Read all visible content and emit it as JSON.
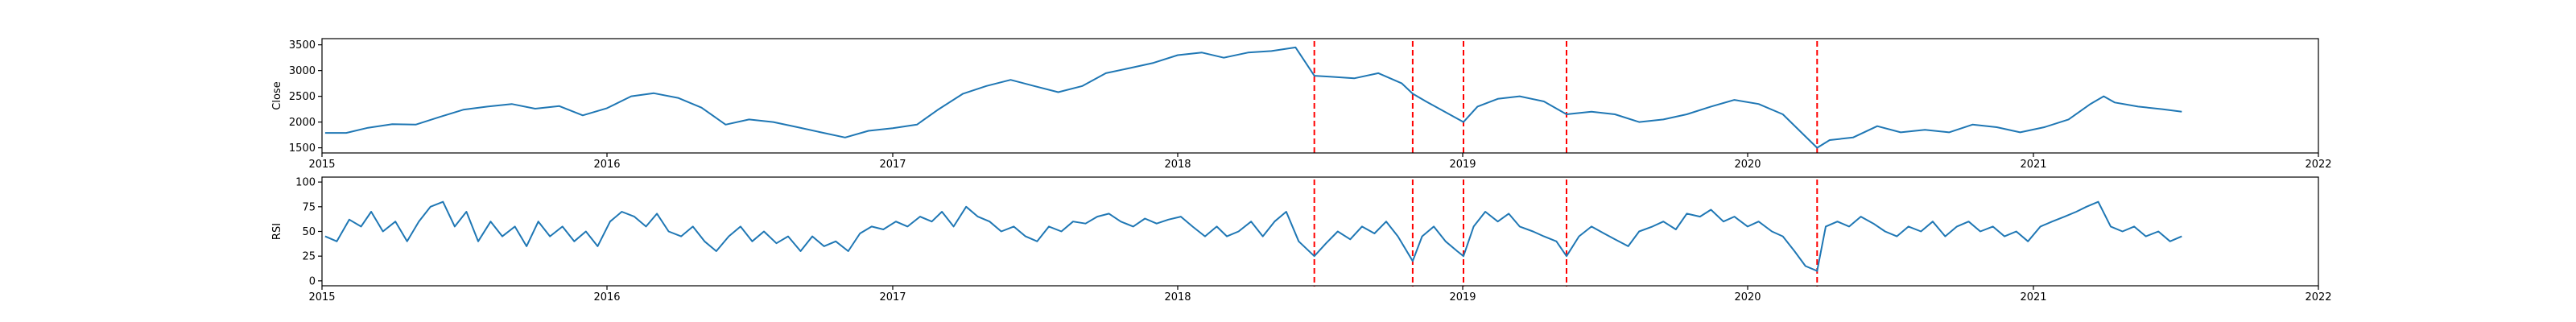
{
  "colors": {
    "line": "#1f77b4",
    "signal": "#ff0000",
    "axis": "#000000",
    "background": "#ffffff"
  },
  "chart_data": [
    {
      "type": "line",
      "ylabel": "Close",
      "xlabel": "",
      "xlim": [
        "2015-01-01",
        "2022-01-01"
      ],
      "ylim": [
        1400,
        3620
      ],
      "x_ticks": [
        "2015",
        "2016",
        "2017",
        "2018",
        "2019",
        "2020",
        "2021",
        "2022"
      ],
      "y_ticks": [
        1500,
        2000,
        2500,
        3000,
        3500
      ],
      "grid": false,
      "signal_lines": [
        "2018-06-25",
        "2018-10-29",
        "2019-01-02",
        "2019-05-14",
        "2020-03-30"
      ],
      "series": [
        {
          "name": "",
          "points": [
            [
              "2015-01-05",
              1790
            ],
            [
              "2015-02-01",
              1790
            ],
            [
              "2015-03-01",
              1890
            ],
            [
              "2015-04-01",
              1960
            ],
            [
              "2015-05-01",
              1950
            ],
            [
              "2015-06-01",
              2100
            ],
            [
              "2015-07-01",
              2240
            ],
            [
              "2015-08-01",
              2300
            ],
            [
              "2015-09-01",
              2350
            ],
            [
              "2015-10-01",
              2260
            ],
            [
              "2015-11-01",
              2310
            ],
            [
              "2015-12-01",
              2130
            ],
            [
              "2016-01-01",
              2270
            ],
            [
              "2016-02-01",
              2500
            ],
            [
              "2016-03-01",
              2560
            ],
            [
              "2016-04-01",
              2470
            ],
            [
              "2016-05-01",
              2280
            ],
            [
              "2016-06-01",
              1950
            ],
            [
              "2016-07-01",
              2050
            ],
            [
              "2016-08-01",
              2000
            ],
            [
              "2016-09-01",
              1900
            ],
            [
              "2016-10-01",
              1800
            ],
            [
              "2016-11-01",
              1700
            ],
            [
              "2016-12-01",
              1830
            ],
            [
              "2017-01-01",
              1880
            ],
            [
              "2017-02-01",
              1950
            ],
            [
              "2017-03-01",
              2250
            ],
            [
              "2017-04-01",
              2550
            ],
            [
              "2017-05-01",
              2700
            ],
            [
              "2017-06-01",
              2820
            ],
            [
              "2017-07-01",
              2700
            ],
            [
              "2017-08-01",
              2580
            ],
            [
              "2017-09-01",
              2700
            ],
            [
              "2017-10-01",
              2950
            ],
            [
              "2017-11-01",
              3050
            ],
            [
              "2017-12-01",
              3150
            ],
            [
              "2018-01-01",
              3300
            ],
            [
              "2018-02-01",
              3350
            ],
            [
              "2018-03-01",
              3250
            ],
            [
              "2018-04-01",
              3350
            ],
            [
              "2018-05-01",
              3380
            ],
            [
              "2018-06-01",
              3450
            ],
            [
              "2018-06-25",
              2900
            ],
            [
              "2018-07-15",
              2880
            ],
            [
              "2018-08-15",
              2850
            ],
            [
              "2018-09-15",
              2950
            ],
            [
              "2018-10-15",
              2750
            ],
            [
              "2018-10-29",
              2550
            ],
            [
              "2018-11-15",
              2400
            ],
            [
              "2018-12-15",
              2150
            ],
            [
              "2019-01-02",
              2000
            ],
            [
              "2019-01-20",
              2300
            ],
            [
              "2019-02-15",
              2450
            ],
            [
              "2019-03-15",
              2500
            ],
            [
              "2019-04-15",
              2400
            ],
            [
              "2019-05-14",
              2150
            ],
            [
              "2019-06-15",
              2200
            ],
            [
              "2019-07-15",
              2150
            ],
            [
              "2019-08-15",
              2000
            ],
            [
              "2019-09-15",
              2050
            ],
            [
              "2019-10-15",
              2150
            ],
            [
              "2019-11-15",
              2300
            ],
            [
              "2019-12-15",
              2430
            ],
            [
              "2020-01-15",
              2350
            ],
            [
              "2020-02-15",
              2150
            ],
            [
              "2020-03-15",
              1720
            ],
            [
              "2020-03-30",
              1500
            ],
            [
              "2020-04-15",
              1650
            ],
            [
              "2020-05-15",
              1700
            ],
            [
              "2020-06-15",
              1920
            ],
            [
              "2020-07-15",
              1800
            ],
            [
              "2020-08-15",
              1850
            ],
            [
              "2020-09-15",
              1800
            ],
            [
              "2020-10-15",
              1950
            ],
            [
              "2020-11-15",
              1900
            ],
            [
              "2020-12-15",
              1800
            ],
            [
              "2021-01-15",
              1900
            ],
            [
              "2021-02-15",
              2050
            ],
            [
              "2021-03-15",
              2350
            ],
            [
              "2021-04-01",
              2500
            ],
            [
              "2021-04-15",
              2380
            ],
            [
              "2021-05-15",
              2300
            ],
            [
              "2021-06-15",
              2250
            ],
            [
              "2021-07-10",
              2200
            ]
          ]
        }
      ]
    },
    {
      "type": "line",
      "ylabel": "RSI",
      "xlabel": "",
      "xlim": [
        "2015-01-01",
        "2022-01-01"
      ],
      "ylim": [
        -5,
        105
      ],
      "x_ticks": [
        "2015",
        "2016",
        "2017",
        "2018",
        "2019",
        "2020",
        "2021",
        "2022"
      ],
      "y_ticks": [
        0,
        25,
        50,
        75,
        100
      ],
      "grid": false,
      "signal_lines": [
        "2018-06-25",
        "2018-10-29",
        "2019-01-02",
        "2019-05-14",
        "2020-03-30"
      ],
      "series": [
        {
          "name": "",
          "points": [
            [
              "2015-01-05",
              45
            ],
            [
              "2015-01-20",
              40
            ],
            [
              "2015-02-05",
              62
            ],
            [
              "2015-02-20",
              55
            ],
            [
              "2015-03-05",
              70
            ],
            [
              "2015-03-20",
              50
            ],
            [
              "2015-04-05",
              60
            ],
            [
              "2015-04-20",
              40
            ],
            [
              "2015-05-05",
              60
            ],
            [
              "2015-05-20",
              75
            ],
            [
              "2015-06-05",
              80
            ],
            [
              "2015-06-20",
              55
            ],
            [
              "2015-07-05",
              70
            ],
            [
              "2015-07-20",
              40
            ],
            [
              "2015-08-05",
              60
            ],
            [
              "2015-08-20",
              45
            ],
            [
              "2015-09-05",
              55
            ],
            [
              "2015-09-20",
              35
            ],
            [
              "2015-10-05",
              60
            ],
            [
              "2015-10-20",
              45
            ],
            [
              "2015-11-05",
              55
            ],
            [
              "2015-11-20",
              40
            ],
            [
              "2015-12-05",
              50
            ],
            [
              "2015-12-20",
              35
            ],
            [
              "2016-01-05",
              60
            ],
            [
              "2016-01-20",
              70
            ],
            [
              "2016-02-05",
              65
            ],
            [
              "2016-02-20",
              55
            ],
            [
              "2016-03-05",
              68
            ],
            [
              "2016-03-20",
              50
            ],
            [
              "2016-04-05",
              45
            ],
            [
              "2016-04-20",
              55
            ],
            [
              "2016-05-05",
              40
            ],
            [
              "2016-05-20",
              30
            ],
            [
              "2016-06-05",
              45
            ],
            [
              "2016-06-20",
              55
            ],
            [
              "2016-07-05",
              40
            ],
            [
              "2016-07-20",
              50
            ],
            [
              "2016-08-05",
              38
            ],
            [
              "2016-08-20",
              45
            ],
            [
              "2016-09-05",
              30
            ],
            [
              "2016-09-20",
              45
            ],
            [
              "2016-10-05",
              35
            ],
            [
              "2016-10-20",
              40
            ],
            [
              "2016-11-05",
              30
            ],
            [
              "2016-11-20",
              48
            ],
            [
              "2016-12-05",
              55
            ],
            [
              "2016-12-20",
              52
            ],
            [
              "2017-01-05",
              60
            ],
            [
              "2017-01-20",
              55
            ],
            [
              "2017-02-05",
              65
            ],
            [
              "2017-02-20",
              60
            ],
            [
              "2017-03-05",
              70
            ],
            [
              "2017-03-20",
              55
            ],
            [
              "2017-04-05",
              75
            ],
            [
              "2017-04-20",
              65
            ],
            [
              "2017-05-05",
              60
            ],
            [
              "2017-05-20",
              50
            ],
            [
              "2017-06-05",
              55
            ],
            [
              "2017-06-20",
              45
            ],
            [
              "2017-07-05",
              40
            ],
            [
              "2017-07-20",
              55
            ],
            [
              "2017-08-05",
              50
            ],
            [
              "2017-08-20",
              60
            ],
            [
              "2017-09-05",
              58
            ],
            [
              "2017-09-20",
              65
            ],
            [
              "2017-10-05",
              68
            ],
            [
              "2017-10-20",
              60
            ],
            [
              "2017-11-05",
              55
            ],
            [
              "2017-11-20",
              63
            ],
            [
              "2017-12-05",
              58
            ],
            [
              "2017-12-20",
              62
            ],
            [
              "2018-01-05",
              65
            ],
            [
              "2018-01-20",
              55
            ],
            [
              "2018-02-05",
              45
            ],
            [
              "2018-02-20",
              55
            ],
            [
              "2018-03-05",
              45
            ],
            [
              "2018-03-20",
              50
            ],
            [
              "2018-04-05",
              60
            ],
            [
              "2018-04-20",
              45
            ],
            [
              "2018-05-05",
              60
            ],
            [
              "2018-05-20",
              70
            ],
            [
              "2018-06-05",
              40
            ],
            [
              "2018-06-25",
              25
            ],
            [
              "2018-07-10",
              38
            ],
            [
              "2018-07-25",
              50
            ],
            [
              "2018-08-10",
              42
            ],
            [
              "2018-08-25",
              55
            ],
            [
              "2018-09-10",
              48
            ],
            [
              "2018-09-25",
              60
            ],
            [
              "2018-10-10",
              45
            ],
            [
              "2018-10-29",
              20
            ],
            [
              "2018-11-10",
              45
            ],
            [
              "2018-11-25",
              55
            ],
            [
              "2018-12-10",
              40
            ],
            [
              "2018-12-25",
              30
            ],
            [
              "2019-01-02",
              25
            ],
            [
              "2019-01-15",
              55
            ],
            [
              "2019-01-30",
              70
            ],
            [
              "2019-02-15",
              60
            ],
            [
              "2019-03-01",
              68
            ],
            [
              "2019-03-15",
              55
            ],
            [
              "2019-04-01",
              50
            ],
            [
              "2019-04-15",
              45
            ],
            [
              "2019-05-01",
              40
            ],
            [
              "2019-05-14",
              25
            ],
            [
              "2019-05-30",
              45
            ],
            [
              "2019-06-15",
              55
            ],
            [
              "2019-07-01",
              48
            ],
            [
              "2019-07-15",
              42
            ],
            [
              "2019-08-01",
              35
            ],
            [
              "2019-08-15",
              50
            ],
            [
              "2019-09-01",
              55
            ],
            [
              "2019-09-15",
              60
            ],
            [
              "2019-10-01",
              52
            ],
            [
              "2019-10-15",
              68
            ],
            [
              "2019-11-01",
              65
            ],
            [
              "2019-11-15",
              72
            ],
            [
              "2019-12-01",
              60
            ],
            [
              "2019-12-15",
              65
            ],
            [
              "2020-01-01",
              55
            ],
            [
              "2020-01-15",
              60
            ],
            [
              "2020-02-01",
              50
            ],
            [
              "2020-02-15",
              45
            ],
            [
              "2020-03-01",
              30
            ],
            [
              "2020-03-15",
              15
            ],
            [
              "2020-03-30",
              10
            ],
            [
              "2020-04-10",
              55
            ],
            [
              "2020-04-25",
              60
            ],
            [
              "2020-05-10",
              55
            ],
            [
              "2020-05-25",
              65
            ],
            [
              "2020-06-10",
              58
            ],
            [
              "2020-06-25",
              50
            ],
            [
              "2020-07-10",
              45
            ],
            [
              "2020-07-25",
              55
            ],
            [
              "2020-08-10",
              50
            ],
            [
              "2020-08-25",
              60
            ],
            [
              "2020-09-10",
              45
            ],
            [
              "2020-09-25",
              55
            ],
            [
              "2020-10-10",
              60
            ],
            [
              "2020-10-25",
              50
            ],
            [
              "2020-11-10",
              55
            ],
            [
              "2020-11-25",
              45
            ],
            [
              "2020-12-10",
              50
            ],
            [
              "2020-12-25",
              40
            ],
            [
              "2021-01-10",
              55
            ],
            [
              "2021-01-25",
              60
            ],
            [
              "2021-02-10",
              65
            ],
            [
              "2021-02-25",
              70
            ],
            [
              "2021-03-10",
              75
            ],
            [
              "2021-03-25",
              80
            ],
            [
              "2021-04-10",
              55
            ],
            [
              "2021-04-25",
              50
            ],
            [
              "2021-05-10",
              55
            ],
            [
              "2021-05-25",
              45
            ],
            [
              "2021-06-10",
              50
            ],
            [
              "2021-06-25",
              40
            ],
            [
              "2021-07-10",
              45
            ]
          ]
        }
      ]
    }
  ]
}
